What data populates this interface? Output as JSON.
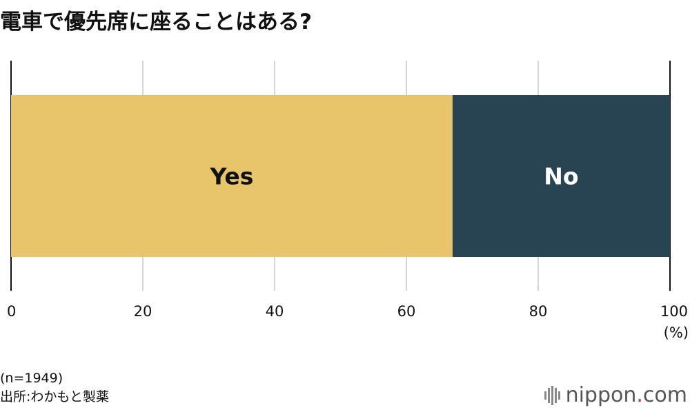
{
  "title": "電車で優先席に座ることはある?",
  "chart_data": {
    "type": "bar",
    "orientation": "horizontal",
    "stacked": true,
    "categories": [
      ""
    ],
    "series": [
      {
        "name": "Yes",
        "values": [
          67
        ],
        "color": "#e8c46b",
        "label_color": "#111111"
      },
      {
        "name": "No",
        "values": [
          33
        ],
        "color": "#284453",
        "label_color": "#ffffff"
      }
    ],
    "xlim": [
      0,
      100
    ],
    "xticks": [
      "0",
      "20",
      "40",
      "60",
      "80",
      "100"
    ],
    "x_unit": "(%)",
    "grid": true,
    "legend": "none"
  },
  "footer": {
    "sample": "(n=1949)",
    "source": "出所:わかもと製薬"
  },
  "brand": {
    "name_main": "nippon",
    "name_dot": ".",
    "name_tld": "com",
    "logo_icon": "sound-wave-bars-icon"
  }
}
